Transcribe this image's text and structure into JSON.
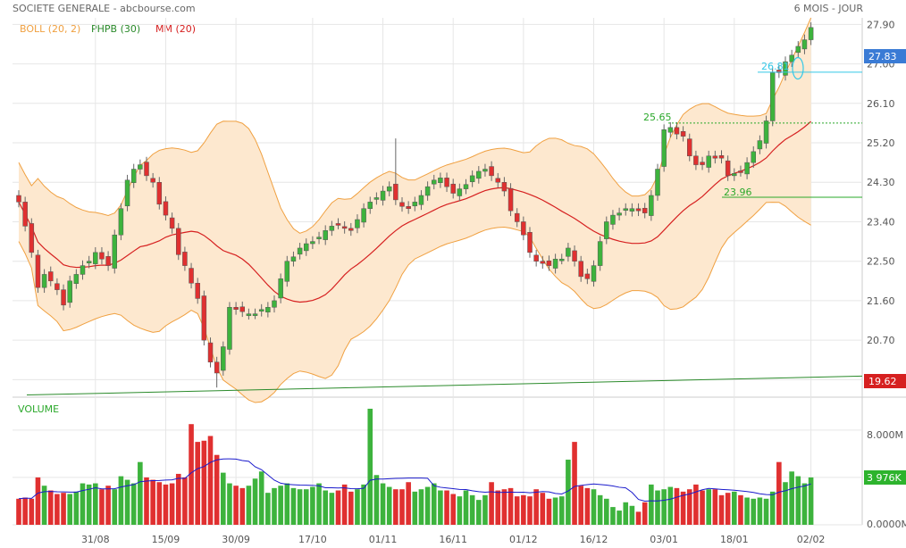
{
  "header": {
    "title": "SOCIETE GENERALE - abcbourse.com",
    "period": "6 MOIS - JOUR"
  },
  "legend": [
    {
      "label": "BOLL (20, 2)",
      "color": "#f0a040"
    },
    {
      "label": "PHPB (30)",
      "color": "#2a8a2a"
    },
    {
      "label": "MM (20)",
      "color": "#d62020"
    }
  ],
  "colors": {
    "up": "#3db33d",
    "down": "#e03030",
    "boll_fill": "#fde8cf",
    "boll_line": "#f0a040",
    "ma": "#d62020",
    "vol_ma": "#1a1acc",
    "last_tag": "#3a7bd5",
    "low_tag": "#d62020",
    "vol_tag": "#2db32d"
  },
  "volume_panel": {
    "label": "VOLUME",
    "ticks": [
      "8.000M",
      "0.0000M"
    ],
    "last_tag": "3 976K"
  },
  "chart_data": {
    "type": "candlestick",
    "price_axis": {
      "ticks": [
        27.9,
        27.0,
        26.1,
        25.2,
        24.3,
        23.4,
        22.5,
        21.6,
        20.7,
        19.8
      ],
      "tick_labels": [
        "27.90",
        "27.00",
        "26.10",
        "25.20",
        "24.30",
        "23.40",
        "22.50",
        "21.60",
        "20.70",
        "19.80"
      ],
      "range": [
        19.4,
        28.05
      ]
    },
    "x_labels": [
      "31/08",
      "15/09",
      "30/09",
      "17/10",
      "01/11",
      "16/11",
      "01/12",
      "16/12",
      "03/01",
      "18/01",
      "02/02"
    ],
    "x_label_index": [
      12,
      23,
      34,
      46,
      57,
      68,
      79,
      90,
      101,
      112,
      124
    ],
    "last_price_tag": "27.83",
    "low_price_tag": "19.62",
    "annotations": [
      {
        "text": "26.81",
        "value": 26.81,
        "color": "#33c8e8"
      },
      {
        "text": "25.65",
        "value": 25.65,
        "color": "#2aa82a"
      },
      {
        "text": "23.96",
        "value": 23.96,
        "color": "#2aa82a"
      }
    ],
    "volume_axis": {
      "range": [
        0,
        10.4
      ]
    },
    "closes": [
      23.85,
      23.3,
      22.7,
      21.9,
      22.2,
      22.05,
      21.85,
      21.5,
      22.05,
      22.2,
      22.4,
      22.5,
      22.7,
      22.55,
      22.4,
      23.1,
      23.7,
      24.35,
      24.6,
      24.7,
      24.45,
      24.3,
      23.8,
      23.55,
      23.25,
      22.65,
      22.4,
      22.0,
      21.65,
      20.7,
      20.2,
      19.95,
      20.55,
      21.45,
      21.4,
      21.35,
      21.3,
      21.3,
      21.4,
      21.45,
      21.6,
      22.1,
      22.5,
      22.6,
      22.8,
      22.9,
      22.95,
      23.05,
      23.2,
      23.3,
      23.35,
      23.25,
      23.2,
      23.45,
      23.7,
      23.85,
      23.95,
      24.1,
      24.2,
      23.9,
      23.75,
      23.7,
      23.85,
      24.0,
      24.2,
      24.35,
      24.4,
      24.2,
      24.05,
      24.15,
      24.25,
      24.45,
      24.55,
      24.6,
      24.45,
      24.3,
      24.1,
      23.65,
      23.4,
      23.1,
      22.7,
      22.5,
      22.45,
      22.4,
      22.55,
      22.55,
      22.8,
      22.5,
      22.15,
      22.1,
      22.4,
      22.95,
      23.4,
      23.55,
      23.6,
      23.7,
      23.7,
      23.65,
      23.6,
      24.0,
      24.6,
      25.5,
      25.55,
      25.4,
      25.35,
      24.9,
      24.7,
      24.7,
      24.9,
      24.85,
      24.85,
      24.45,
      24.5,
      24.55,
      24.75,
      25.0,
      25.25,
      25.7,
      26.8,
      26.8,
      27.05,
      27.2,
      27.4,
      27.55,
      27.83
    ],
    "volumes": [
      2.2,
      2.3,
      2.2,
      4.0,
      3.3,
      2.9,
      2.6,
      2.7,
      2.6,
      2.8,
      3.5,
      3.4,
      3.5,
      3.0,
      3.3,
      3.0,
      4.1,
      3.8,
      3.5,
      5.3,
      4.0,
      3.8,
      3.6,
      3.4,
      3.5,
      4.3,
      4.0,
      8.5,
      7.0,
      7.1,
      7.5,
      5.9,
      4.4,
      3.5,
      3.3,
      3.1,
      3.3,
      3.9,
      4.5,
      2.7,
      3.1,
      3.3,
      3.5,
      3.1,
      3.0,
      3.0,
      3.2,
      3.5,
      2.9,
      2.7,
      2.9,
      3.4,
      2.8,
      3.0,
      3.4,
      9.8,
      4.2,
      3.5,
      3.2,
      3.0,
      3.0,
      3.6,
      2.8,
      3.0,
      3.2,
      3.5,
      2.9,
      2.9,
      2.6,
      2.4,
      2.9,
      2.5,
      2.1,
      2.5,
      3.6,
      2.9,
      3.0,
      3.1,
      2.4,
      2.5,
      2.4,
      3.0,
      2.7,
      2.2,
      2.3,
      2.4,
      5.5,
      7.0,
      3.3,
      3.1,
      3.0,
      2.5,
      2.2,
      1.5,
      1.2,
      1.9,
      1.6,
      1.1,
      1.9,
      3.4,
      2.9,
      3.0,
      3.2,
      3.1,
      2.8,
      3.0,
      3.4,
      2.9,
      3.0,
      3.0,
      2.5,
      2.7,
      2.8,
      2.5,
      2.3,
      2.2,
      2.3,
      2.2,
      2.8,
      5.3,
      3.6,
      4.5,
      4.1,
      3.5,
      4.0
    ]
  }
}
